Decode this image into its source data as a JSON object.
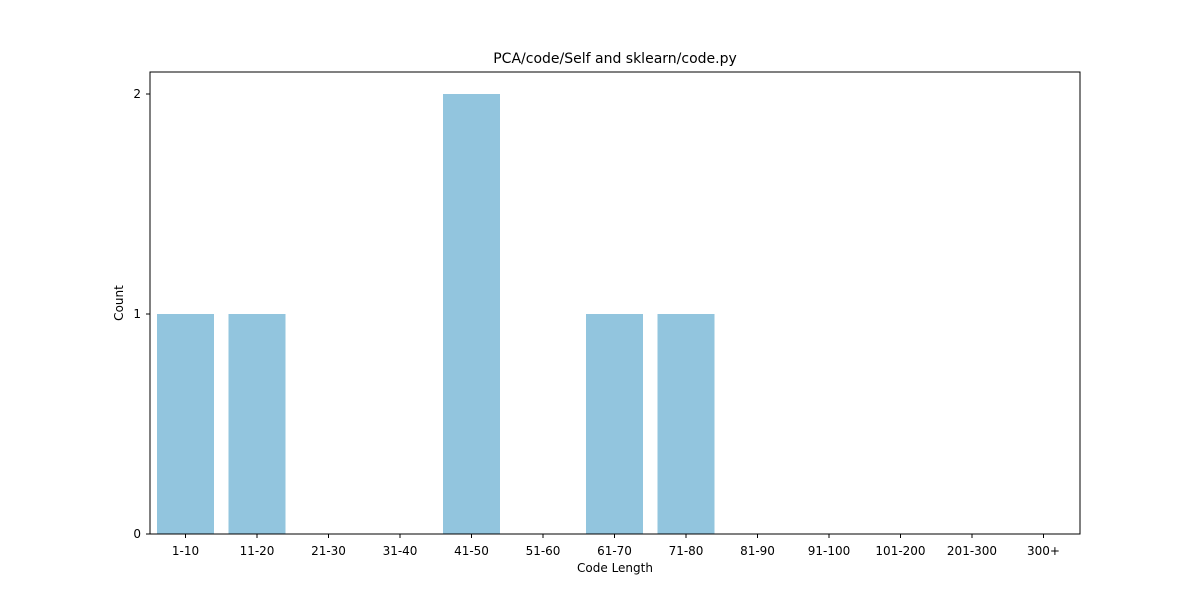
{
  "chart_data": {
    "type": "bar",
    "title": "PCA/code/Self and sklearn/code.py",
    "xlabel": "Code Length",
    "ylabel": "Count",
    "categories": [
      "1-10",
      "11-20",
      "21-30",
      "31-40",
      "41-50",
      "51-60",
      "61-70",
      "71-80",
      "81-90",
      "91-100",
      "101-200",
      "201-300",
      "300+"
    ],
    "values": [
      1,
      1,
      0,
      0,
      2,
      0,
      1,
      1,
      0,
      0,
      0,
      0,
      0
    ],
    "ylim": [
      0,
      2.1
    ],
    "yticks": [
      0,
      1,
      2
    ],
    "grid": false,
    "bar_color": "#92c5de"
  }
}
